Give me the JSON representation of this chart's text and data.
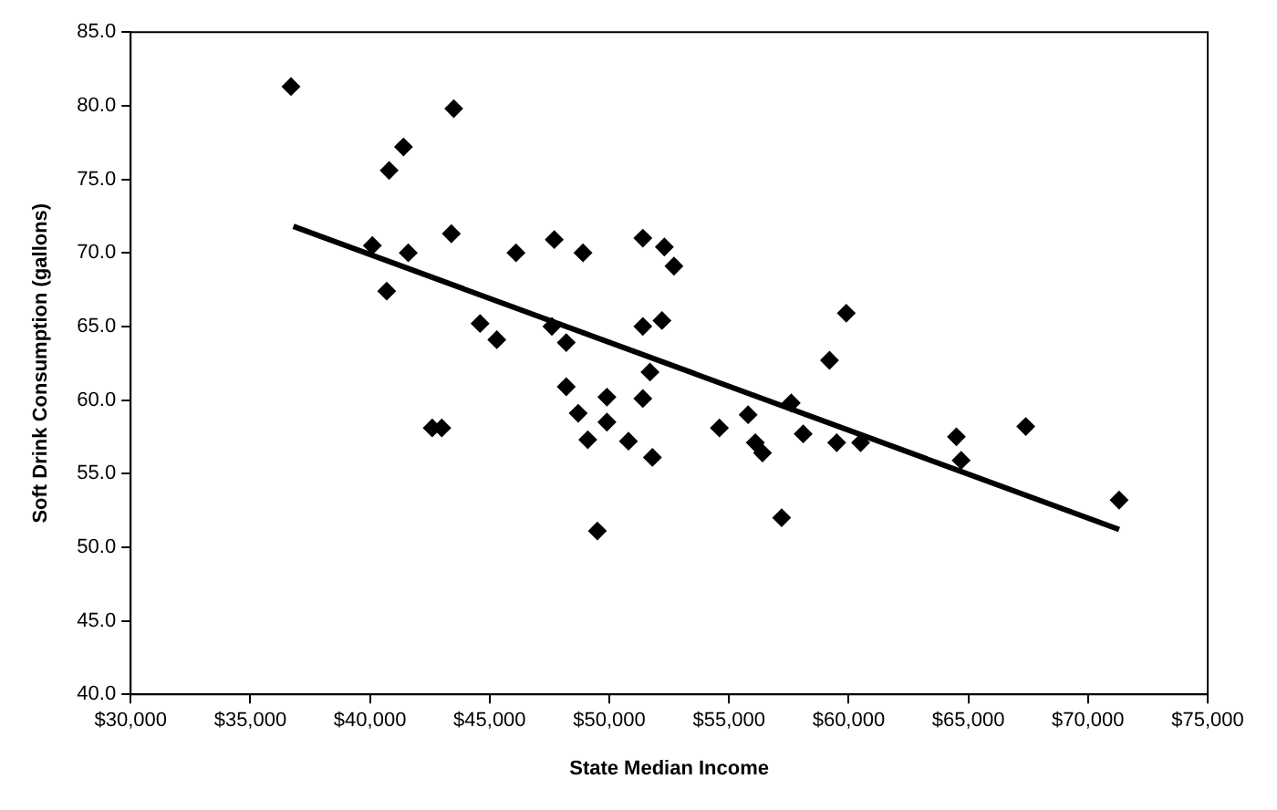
{
  "chart_data": {
    "type": "scatter",
    "xlabel": "State Median Income",
    "ylabel": "Soft Drink Consumption (gallons)",
    "xlim": [
      30000,
      75000
    ],
    "xticks": [
      {
        "value": 30000,
        "label": "$30,000"
      },
      {
        "value": 35000,
        "label": "$35,000"
      },
      {
        "value": 40000,
        "label": "$40,000"
      },
      {
        "value": 45000,
        "label": "$45,000"
      },
      {
        "value": 50000,
        "label": "$50,000"
      },
      {
        "value": 55000,
        "label": "$55,000"
      },
      {
        "value": 60000,
        "label": "$60,000"
      },
      {
        "value": 65000,
        "label": "$65,000"
      },
      {
        "value": 70000,
        "label": "$70,000"
      },
      {
        "value": 75000,
        "label": "$75,000"
      }
    ],
    "ylim": [
      40,
      85
    ],
    "yticks": [
      {
        "value": 40,
        "label": "40.0"
      },
      {
        "value": 45,
        "label": "45.0"
      },
      {
        "value": 50,
        "label": "50.0"
      },
      {
        "value": 55,
        "label": "55.0"
      },
      {
        "value": 60,
        "label": "60.0"
      },
      {
        "value": 65,
        "label": "65.0"
      },
      {
        "value": 70,
        "label": "70.0"
      },
      {
        "value": 75,
        "label": "75.0"
      },
      {
        "value": 80,
        "label": "80.0"
      },
      {
        "value": 85,
        "label": "85.0"
      }
    ],
    "grid": false,
    "legend": false,
    "marker": "diamond",
    "series": [
      {
        "type": "scatter",
        "color": "#000000",
        "x": [
          36700,
          40100,
          40800,
          41400,
          40700,
          41600,
          43500,
          43400,
          44600,
          45300,
          42600,
          43000,
          46100,
          47700,
          48900,
          47600,
          48200,
          48200,
          48700,
          49100,
          49900,
          49900,
          49500,
          50800,
          51400,
          51400,
          52300,
          52700,
          52200,
          51700,
          51400,
          51800,
          54600,
          55800,
          56100,
          56400,
          57200,
          57600,
          58100,
          59200,
          59900,
          59500,
          60500,
          64500,
          64700,
          67400,
          71300
        ],
        "values": [
          81.3,
          70.5,
          75.6,
          77.2,
          67.4,
          70.0,
          79.8,
          71.3,
          65.2,
          64.1,
          58.1,
          58.1,
          70.0,
          70.9,
          70.0,
          65.0,
          63.9,
          60.9,
          59.1,
          57.3,
          58.5,
          60.2,
          51.1,
          57.2,
          71.0,
          65.0,
          70.4,
          69.1,
          65.4,
          61.9,
          60.1,
          56.1,
          58.1,
          59.0,
          57.1,
          56.4,
          52.0,
          59.8,
          57.7,
          62.7,
          65.9,
          57.1,
          57.1,
          57.5,
          55.9,
          58.2,
          53.2
        ]
      },
      {
        "type": "line",
        "color": "#000000",
        "marker": "none",
        "line_style": "solid",
        "x": [
          36800,
          71300
        ],
        "values": [
          71.8,
          51.2
        ]
      }
    ]
  }
}
